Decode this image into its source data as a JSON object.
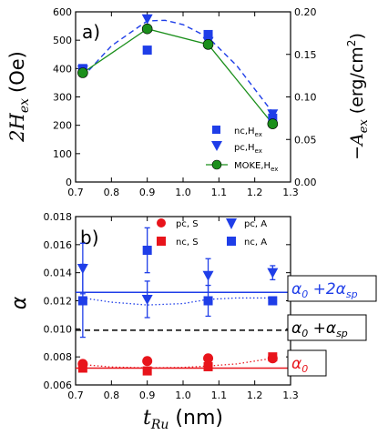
{
  "chart_data": [
    {
      "type": "scatter",
      "panel_label": "a)",
      "xlim": [
        0.7,
        1.3
      ],
      "ylim": [
        0,
        600
      ],
      "y2lim": [
        0.0,
        0.2
      ],
      "ylabel_main": "2H",
      "ylabel_sub": "ex",
      "ylabel_unit": "(Oe)",
      "y2label_main": "−A",
      "y2label_sub": "ex",
      "y2label_unit": "(erg/cm",
      "y2label_sup": "2",
      "y2label_close": ")",
      "xticks": [
        "0.7",
        "0.8",
        "0.9",
        "1.0",
        "1.1",
        "1.2",
        "1.3"
      ],
      "yticks": [
        "0",
        "100",
        "200",
        "300",
        "400",
        "500",
        "600"
      ],
      "y2ticks": [
        "0.00",
        "0.05",
        "0.10",
        "0.15",
        "0.20"
      ],
      "grid": false,
      "legend_position": "lower-right",
      "series": [
        {
          "name_main": "nc,H",
          "name_sub": "ex",
          "marker": "square",
          "color": "#1f3ee8",
          "x": [
            0.72,
            0.9,
            1.07,
            1.25
          ],
          "y": [
            400,
            465,
            520,
            225
          ]
        },
        {
          "name_main": "pc,H",
          "name_sub": "ex",
          "marker": "triangle-down",
          "color": "#1f3ee8",
          "x": [
            0.72,
            0.9,
            1.07,
            1.25
          ],
          "y": [
            395,
            575,
            495,
            240
          ]
        },
        {
          "name_main": "MOKE,H",
          "name_sub": "ex",
          "marker": "circle",
          "color": "#1b8f1b",
          "line_color": "#1b8f1b",
          "x": [
            0.72,
            0.9,
            1.07,
            1.25
          ],
          "y": [
            385,
            540,
            485,
            205
          ]
        }
      ],
      "fit_curve": {
        "color": "#1f3ee8",
        "style": "dashed",
        "x": [
          0.72,
          0.8,
          0.9,
          0.95,
          1.0,
          1.07,
          1.15,
          1.25
        ],
        "y": [
          370,
          480,
          568,
          570,
          555,
          510,
          410,
          245
        ]
      }
    },
    {
      "type": "scatter",
      "panel_label": "b)",
      "xlim": [
        0.7,
        1.3
      ],
      "ylim": [
        0.006,
        0.018
      ],
      "xlabel_main": "t",
      "xlabel_sub": "Ru",
      "xlabel_unit": " (nm)",
      "ylabel": "α",
      "xticks": [
        "0.7",
        "0.8",
        "0.9",
        "1.0",
        "1.1",
        "1.2",
        "1.3"
      ],
      "yticks": [
        "0.006",
        "0.008",
        "0.010",
        "0.012",
        "0.014",
        "0.016",
        "0.018"
      ],
      "grid": false,
      "legend_position": "top",
      "series": [
        {
          "name": "pc, S",
          "marker": "circle",
          "color": "#e8141b",
          "x": [
            0.72,
            0.9,
            1.07,
            1.25
          ],
          "y": [
            0.0075,
            0.0077,
            0.0079,
            0.0079
          ]
        },
        {
          "name": "nc, S",
          "marker": "square",
          "color": "#e8141b",
          "x": [
            0.72,
            0.9,
            1.07,
            1.25
          ],
          "y": [
            0.0072,
            0.007,
            0.0073,
            0.008
          ]
        },
        {
          "name": "pc, A",
          "marker": "triangle-down",
          "color": "#1f3ee8",
          "x": [
            0.72,
            0.9,
            1.07,
            1.25
          ],
          "y": [
            0.0143,
            0.0121,
            0.0138,
            0.014
          ],
          "err": [
            0.0018,
            0.0013,
            0.0012,
            0.0005
          ]
        },
        {
          "name": "nc, A",
          "marker": "square",
          "color": "#1f3ee8",
          "x": [
            0.72,
            0.9,
            1.07,
            1.25
          ],
          "y": [
            0.012,
            0.0156,
            0.012,
            0.012
          ],
          "err": [
            0.0026,
            0.0016,
            0.0011,
            0.0
          ]
        }
      ],
      "reference_lines": [
        {
          "y": 0.0126,
          "color": "#1f3ee8",
          "style": "solid",
          "label_main": "α",
          "label_sub": "0",
          "label_mid": " +2α",
          "label_sub2": "sp"
        },
        {
          "y": 0.0099,
          "color": "#000000",
          "style": "dashed",
          "label_main": "α",
          "label_sub": "0",
          "label_mid": " +α",
          "label_sub2": "sp"
        },
        {
          "y": 0.0072,
          "color": "#e8141b",
          "style": "solid",
          "label_main": "α",
          "label_sub": "0",
          "label_mid": "",
          "label_sub2": ""
        }
      ],
      "dotted_curves": [
        {
          "color": "#1f3ee8",
          "x": [
            0.72,
            0.8,
            0.9,
            1.0,
            1.07,
            1.15,
            1.25
          ],
          "y": [
            0.0122,
            0.0119,
            0.0117,
            0.0118,
            0.0121,
            0.0122,
            0.0122
          ]
        },
        {
          "color": "#e8141b",
          "x": [
            0.72,
            0.8,
            0.9,
            1.0,
            1.07,
            1.15,
            1.25
          ],
          "y": [
            0.00745,
            0.00728,
            0.00722,
            0.00725,
            0.00735,
            0.0075,
            0.0079
          ]
        }
      ]
    }
  ]
}
